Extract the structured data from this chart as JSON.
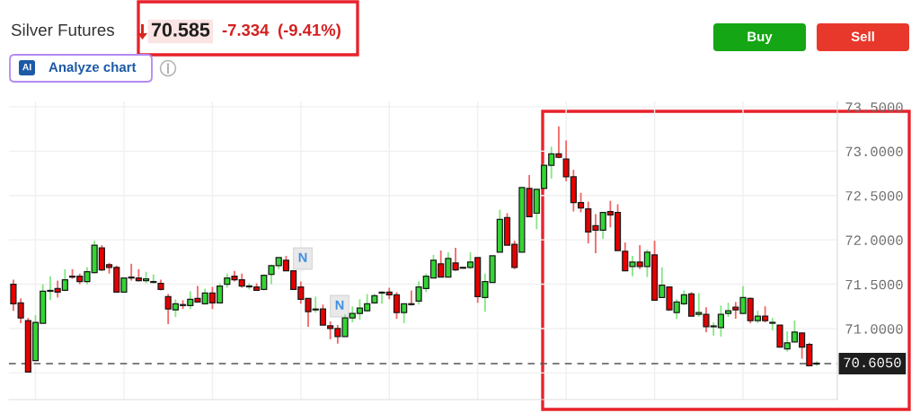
{
  "chart_data": {
    "type": "candlestick",
    "title": "Silver Futures",
    "annotations": [
      "70.585",
      "-7.334",
      "(-9.41%)",
      "Analyze chart",
      "AI",
      "Buy",
      "Sell",
      "N",
      "N"
    ],
    "categories": [
      null,
      null,
      null,
      null,
      null,
      null,
      null,
      null,
      null,
      null,
      null,
      null,
      null,
      null,
      null,
      null,
      null,
      null,
      null,
      null,
      null,
      null,
      null,
      null,
      null,
      null,
      null,
      null,
      null,
      null,
      null,
      null,
      null,
      null,
      null,
      null,
      null,
      null,
      null,
      null,
      null,
      null,
      null,
      null,
      null,
      null,
      null,
      null,
      null,
      null,
      null,
      null,
      null,
      null,
      null,
      null,
      null,
      null,
      null,
      null,
      null,
      null,
      null,
      null,
      null,
      null,
      null,
      null,
      null,
      null,
      null,
      null,
      null,
      null,
      null,
      null,
      null,
      null,
      null,
      null,
      null,
      null,
      null,
      null,
      null,
      null,
      null,
      null,
      null,
      null,
      null,
      null,
      null,
      null,
      null,
      null,
      null,
      null,
      null,
      null,
      null,
      null,
      null,
      null,
      null,
      null,
      null,
      null,
      null,
      null
    ],
    "ohlc": [
      [
        71.5,
        71.55,
        71.2,
        71.28
      ],
      [
        71.29,
        71.34,
        71.06,
        71.12
      ],
      [
        71.09,
        71.12,
        70.51,
        70.51
      ],
      [
        70.64,
        71.15,
        70.64,
        71.07
      ],
      [
        71.06,
        71.5,
        71.06,
        71.42
      ],
      [
        71.42,
        71.59,
        71.32,
        71.43
      ],
      [
        71.45,
        71.54,
        71.35,
        71.41
      ],
      [
        71.43,
        71.67,
        71.42,
        71.55
      ],
      [
        71.59,
        71.67,
        71.56,
        71.58
      ],
      [
        71.59,
        71.62,
        71.5,
        71.53
      ],
      [
        71.53,
        71.69,
        71.5,
        71.64
      ],
      [
        71.63,
        71.99,
        71.62,
        71.94
      ],
      [
        71.91,
        71.94,
        71.65,
        71.66
      ],
      [
        71.72,
        71.74,
        71.62,
        71.69
      ],
      [
        71.69,
        71.71,
        71.41,
        71.41
      ],
      [
        71.41,
        71.57,
        71.41,
        71.57
      ],
      [
        71.58,
        71.73,
        71.54,
        71.57
      ],
      [
        71.57,
        71.67,
        71.53,
        71.54
      ],
      [
        71.54,
        71.64,
        71.51,
        71.56
      ],
      [
        71.52,
        71.61,
        71.51,
        71.53
      ],
      [
        71.51,
        71.55,
        71.43,
        71.44
      ],
      [
        71.36,
        71.39,
        71.05,
        71.22
      ],
      [
        71.21,
        71.33,
        71.13,
        71.28
      ],
      [
        71.27,
        71.32,
        71.22,
        71.26
      ],
      [
        71.26,
        71.42,
        71.22,
        71.33
      ],
      [
        71.34,
        71.48,
        71.29,
        71.3
      ],
      [
        71.28,
        71.45,
        71.27,
        71.4
      ],
      [
        71.4,
        71.47,
        71.22,
        71.29
      ],
      [
        71.29,
        71.51,
        71.29,
        71.48
      ],
      [
        71.5,
        71.62,
        71.46,
        71.57
      ],
      [
        71.59,
        71.65,
        71.53,
        71.55
      ],
      [
        71.55,
        71.62,
        71.46,
        71.48
      ],
      [
        71.47,
        71.51,
        71.44,
        71.48
      ],
      [
        71.47,
        71.51,
        71.43,
        71.43
      ],
      [
        71.44,
        71.61,
        71.43,
        71.6
      ],
      [
        71.61,
        71.72,
        71.5,
        71.71
      ],
      [
        71.71,
        71.8,
        71.67,
        71.8
      ],
      [
        71.77,
        71.82,
        71.65,
        71.65
      ],
      [
        71.65,
        71.65,
        71.44,
        71.44
      ],
      [
        71.47,
        71.53,
        71.28,
        71.33
      ],
      [
        71.34,
        71.34,
        71.02,
        71.19
      ],
      [
        71.21,
        71.36,
        71.18,
        71.22
      ],
      [
        71.22,
        71.27,
        71.04,
        71.04
      ],
      [
        71.03,
        71.08,
        70.88,
        71.0
      ],
      [
        71.0,
        71.04,
        70.83,
        70.91
      ],
      [
        70.91,
        71.16,
        70.91,
        71.12
      ],
      [
        71.12,
        71.25,
        71.07,
        71.17
      ],
      [
        71.17,
        71.33,
        71.1,
        71.23
      ],
      [
        71.2,
        71.39,
        71.19,
        71.28
      ],
      [
        71.29,
        71.39,
        71.28,
        71.37
      ],
      [
        71.4,
        71.42,
        71.28,
        71.41
      ],
      [
        71.41,
        71.46,
        71.33,
        71.38
      ],
      [
        71.38,
        71.41,
        71.11,
        71.18
      ],
      [
        71.18,
        71.28,
        71.06,
        71.28
      ],
      [
        71.28,
        71.43,
        71.26,
        71.27
      ],
      [
        71.31,
        71.53,
        71.27,
        71.47
      ],
      [
        71.45,
        71.62,
        71.41,
        71.59
      ],
      [
        71.57,
        71.83,
        71.57,
        71.77
      ],
      [
        71.73,
        71.88,
        71.58,
        71.58
      ],
      [
        71.58,
        71.86,
        71.58,
        71.79
      ],
      [
        71.74,
        71.91,
        71.65,
        71.66
      ],
      [
        71.69,
        71.69,
        71.68,
        71.68
      ],
      [
        71.69,
        71.86,
        71.67,
        71.75
      ],
      [
        71.8,
        71.8,
        71.29,
        71.36
      ],
      [
        71.35,
        71.62,
        71.19,
        71.53
      ],
      [
        71.52,
        71.82,
        71.52,
        71.82
      ],
      [
        71.86,
        72.34,
        71.86,
        72.23
      ],
      [
        72.25,
        72.3,
        71.94,
        71.94
      ],
      [
        71.95,
        71.99,
        71.67,
        71.69
      ],
      [
        71.86,
        72.59,
        71.86,
        72.59
      ],
      [
        72.58,
        72.73,
        72.26,
        72.26
      ],
      [
        72.3,
        72.57,
        72.12,
        72.57
      ],
      [
        72.58,
        72.86,
        72.58,
        72.84
      ],
      [
        72.84,
        73.05,
        72.69,
        72.97
      ],
      [
        72.97,
        73.28,
        72.92,
        72.93
      ],
      [
        72.91,
        73.12,
        72.66,
        72.71
      ],
      [
        72.71,
        72.79,
        72.32,
        72.42
      ],
      [
        72.42,
        72.53,
        72.31,
        72.36
      ],
      [
        72.35,
        72.43,
        71.96,
        72.09
      ],
      [
        72.16,
        72.29,
        71.85,
        72.11
      ],
      [
        72.11,
        72.31,
        72.01,
        72.31
      ],
      [
        72.32,
        72.44,
        72.14,
        72.28
      ],
      [
        72.31,
        72.4,
        71.88,
        71.88
      ],
      [
        71.87,
        71.97,
        71.65,
        71.65
      ],
      [
        71.7,
        71.82,
        71.59,
        71.75
      ],
      [
        71.75,
        71.94,
        71.67,
        71.7
      ],
      [
        71.7,
        71.89,
        71.58,
        71.86
      ],
      [
        71.83,
        71.99,
        71.32,
        71.32
      ],
      [
        71.35,
        71.69,
        71.35,
        71.49
      ],
      [
        71.47,
        71.47,
        71.2,
        71.21
      ],
      [
        71.18,
        71.33,
        71.11,
        71.3
      ],
      [
        71.28,
        71.43,
        71.26,
        71.38
      ],
      [
        71.39,
        71.41,
        71.14,
        71.14
      ],
      [
        71.16,
        71.4,
        71.13,
        71.18
      ],
      [
        71.16,
        71.24,
        70.96,
        71.02
      ],
      [
        71.02,
        71.07,
        70.92,
        71.03
      ],
      [
        71.01,
        71.26,
        70.91,
        71.16
      ],
      [
        71.17,
        71.29,
        71.13,
        71.2
      ],
      [
        71.24,
        71.3,
        71.11,
        71.21
      ],
      [
        71.17,
        71.48,
        71.17,
        71.35
      ],
      [
        71.34,
        71.35,
        71.06,
        71.09
      ],
      [
        71.09,
        71.2,
        71.06,
        71.14
      ],
      [
        71.14,
        71.25,
        71.07,
        71.09
      ],
      [
        71.06,
        71.12,
        70.98,
        71.07
      ],
      [
        71.04,
        71.04,
        70.79,
        70.79
      ],
      [
        70.77,
        70.97,
        70.74,
        70.84
      ],
      [
        70.85,
        71.09,
        70.85,
        70.96
      ],
      [
        70.95,
        70.95,
        70.66,
        70.79
      ],
      [
        70.82,
        70.84,
        70.58,
        70.58
      ],
      [
        70.6,
        70.63,
        70.58,
        70.61
      ]
    ],
    "colors": [
      "#e60000",
      "#e60000",
      "#e60000",
      "#33d633",
      "#33d633",
      "#33d633",
      "#e60000",
      "#33d633",
      "#e60000",
      "#e60000",
      "#33d633",
      "#33d633",
      "#e60000",
      "#e60000",
      "#e60000",
      "#33d633",
      "#e60000",
      "#e60000",
      "#33d633",
      "#33d633",
      "#e60000",
      "#e60000",
      "#33d633",
      "#e60000",
      "#33d633",
      "#e60000",
      "#33d633",
      "#e60000",
      "#33d633",
      "#33d633",
      "#e60000",
      "#e60000",
      "#33d633",
      "#e60000",
      "#33d633",
      "#33d633",
      "#33d633",
      "#e60000",
      "#e60000",
      "#e60000",
      "#e60000",
      "#33d633",
      "#e60000",
      "#e60000",
      "#e60000",
      "#33d633",
      "#33d633",
      "#33d633",
      "#33d633",
      "#33d633",
      "#33d633",
      "#e60000",
      "#e60000",
      "#33d633",
      "#e60000",
      "#33d633",
      "#33d633",
      "#33d633",
      "#e60000",
      "#33d633",
      "#e60000",
      "#e60000",
      "#33d633",
      "#e60000",
      "#33d633",
      "#33d633",
      "#33d633",
      "#e60000",
      "#e60000",
      "#33d633",
      "#e60000",
      "#33d633",
      "#33d633",
      "#33d633",
      "#e60000",
      "#e60000",
      "#e60000",
      "#e60000",
      "#e60000",
      "#e60000",
      "#33d633",
      "#e60000",
      "#e60000",
      "#e60000",
      "#33d633",
      "#e60000",
      "#33d633",
      "#e60000",
      "#33d633",
      "#e60000",
      "#33d633",
      "#33d633",
      "#e60000",
      "#33d633",
      "#e60000",
      "#33d633",
      "#33d633",
      "#33d633",
      "#e60000",
      "#33d633",
      "#e60000",
      "#33d633",
      "#e60000",
      "#33d633",
      "#e60000",
      "#33d633",
      "#33d633",
      "#e60000",
      "#e60000",
      "#33d633"
    ],
    "ylim": [
      70.2,
      73.56
    ],
    "yticks": [
      {
        "value": 70.5,
        "label": null
      },
      {
        "value": 71,
        "label": "71.0000"
      },
      {
        "value": 71.5,
        "label": "71.5000"
      },
      {
        "value": 72,
        "label": "72.0000"
      },
      {
        "value": 72.5,
        "label": "72.5000"
      },
      {
        "value": 73,
        "label": "73.0000"
      },
      {
        "value": 73.5,
        "label": "73.5000"
      }
    ],
    "grid": true,
    "tick_labels": "y",
    "ref_lines": [
      {
        "axis": "y",
        "value": 70.605,
        "label": "70.6050",
        "color": "#555555",
        "line_style": "dashed"
      }
    ]
  }
}
